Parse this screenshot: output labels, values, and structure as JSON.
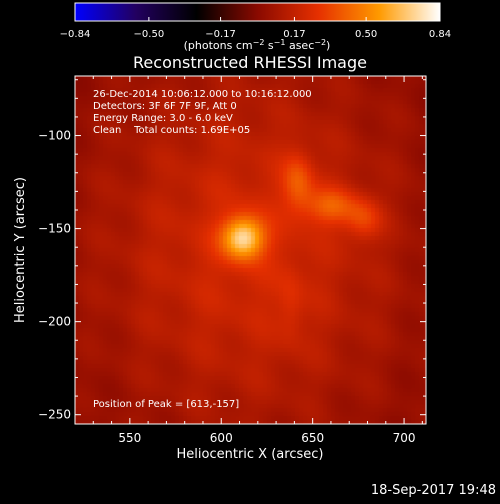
{
  "chart_data": {
    "type": "heatmap",
    "title": "Reconstructed RHESSI Image",
    "xlabel": "Heliocentric X (arcsec)",
    "ylabel": "Heliocentric Y (arcsec)",
    "xlim": [
      520,
      712
    ],
    "ylim": [
      -255,
      -68
    ],
    "x_ticks": [
      550,
      600,
      650,
      700
    ],
    "y_ticks": [
      -100,
      -150,
      -200,
      -250
    ],
    "tick_labels_x": [
      "550",
      "600",
      "650",
      "700"
    ],
    "tick_labels_y": [
      "−100",
      "−150",
      "−200",
      "−250"
    ],
    "colorbar": {
      "ticks": [
        -0.84,
        -0.5,
        -0.17,
        0.17,
        0.5,
        0.84
      ],
      "tick_labels": [
        "−0.84",
        "−0.50",
        "−0.17",
        "0.17",
        "0.50",
        "0.84"
      ],
      "units_prefix": "(photons cm",
      "units_exp1": "−2",
      "units_mid": " s",
      "units_exp2": "−1",
      "units_mid2": " asec",
      "units_exp3": "−2",
      "units_suffix": ")",
      "range": [
        -0.84,
        0.84
      ],
      "colors": [
        "#0000ff",
        "#220060",
        "#000000",
        "#8a0a00",
        "#e63000",
        "#ff9a00",
        "#ffffff"
      ]
    },
    "annotations": [
      "26-Dec-2014 10:06:12.000 to 10:16:12.000",
      "Detectors: 3F 6F 7F 9F, Att 0",
      "Energy Range: 3.0 - 6.0 keV",
      "Clean    Total counts: 1.69E+05"
    ],
    "peak_label": "Position of Peak = [613,-157]",
    "peak": [
      613,
      -157
    ],
    "sources": [
      {
        "x": 612,
        "y": -155,
        "sx": 8,
        "sy": 8,
        "amp": 0.55
      },
      {
        "x": 642,
        "y": -125,
        "sx": 6,
        "sy": 11,
        "amp": 0.22
      },
      {
        "x": 660,
        "y": -138,
        "sx": 10,
        "sy": 7,
        "amp": 0.24
      },
      {
        "x": 678,
        "y": -145,
        "sx": 7,
        "sy": 8,
        "amp": 0.2
      },
      {
        "x": 638,
        "y": -192,
        "sx": 5,
        "sy": 14,
        "amp": 0.08
      },
      {
        "x": 615,
        "y": -160,
        "sx": 60,
        "sy": 70,
        "amp": 0.22
      }
    ]
  },
  "footer": {
    "timestamp": "18-Sep-2017 19:48"
  }
}
